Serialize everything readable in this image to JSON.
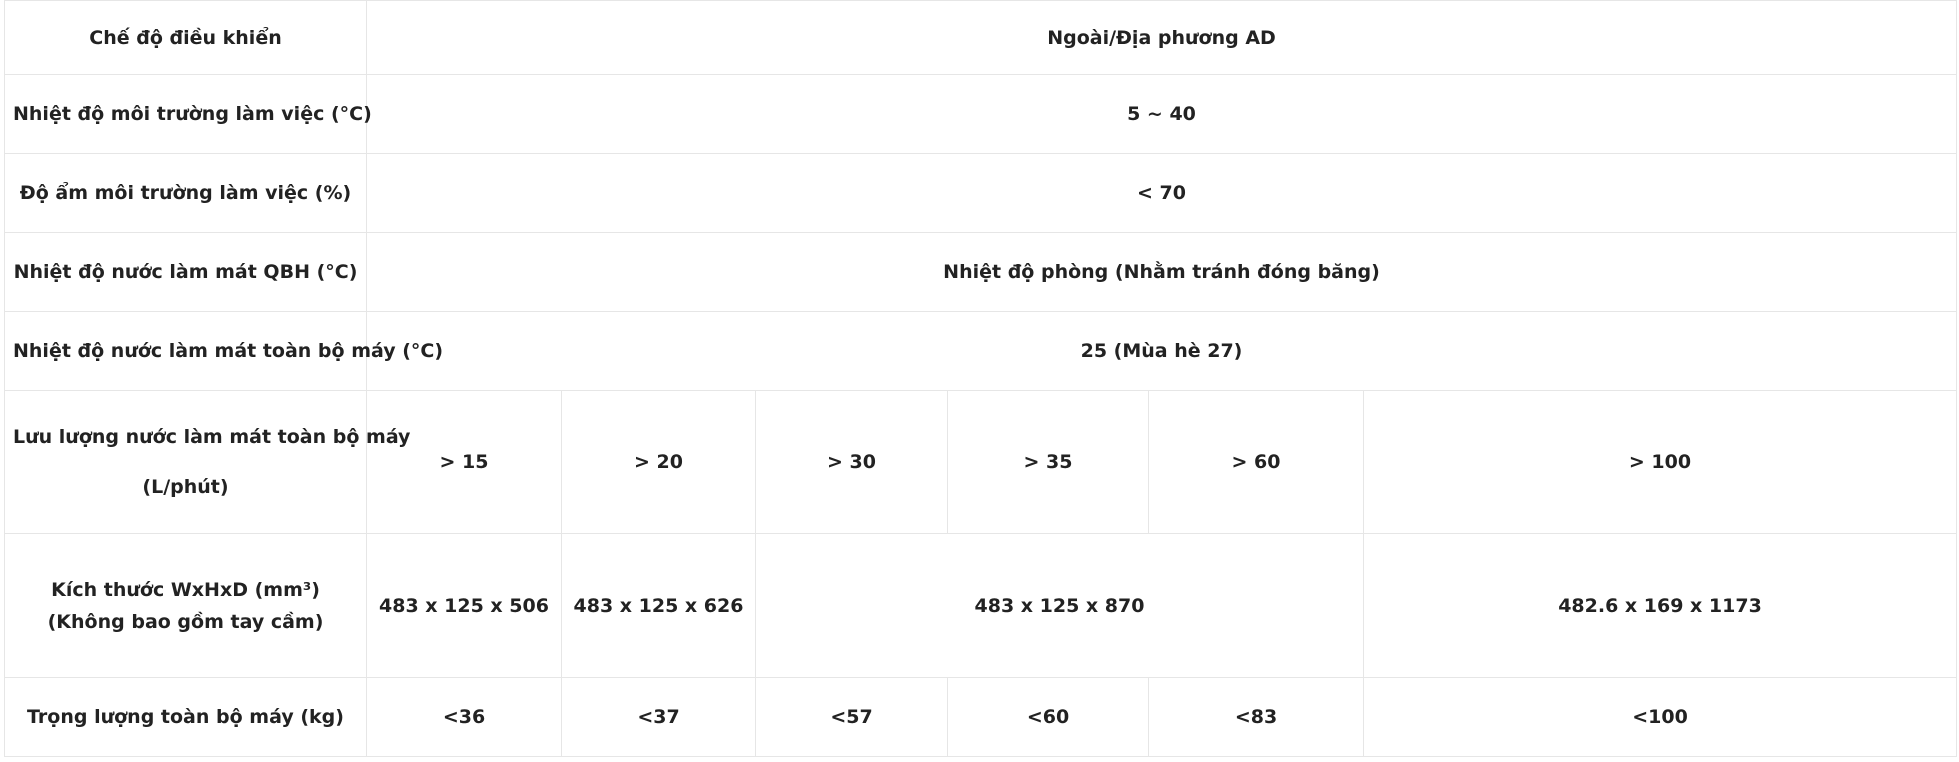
{
  "rows": {
    "control_mode": {
      "label": "Chế độ điều khiển",
      "value": "Ngoài/Địa phương AD"
    },
    "working_temp": {
      "label": "Nhiệt độ môi trường làm việc  (°C)",
      "value": "5 ~ 40"
    },
    "working_humidity": {
      "label": "Độ ẩm môi trường làm việc  (%)",
      "value": "< 70"
    },
    "qbh_coolant_temp": {
      "label": "Nhiệt độ nước làm mát QBH  (°C)",
      "value": "Nhiệt độ phòng (Nhằm tránh đóng băng)"
    },
    "machine_coolant_temp": {
      "label": "Nhiệt độ nước làm mát toàn bộ máy  (°C)",
      "value": "25  (Mùa hè 27)"
    },
    "coolant_flow": {
      "label_line1": "Lưu lượng nước làm mát toàn bộ máy",
      "label_line2": "(L/phút)",
      "values": [
        "> 15",
        "> 20",
        "> 30",
        "> 35",
        "> 60",
        "> 100"
      ]
    },
    "dimensions": {
      "label_line1": "Kích thước WxHxD (mm³)",
      "label_line2": "(Không bao gồm tay cầm)",
      "values": [
        "483 x 125 x 506",
        "483 x 125 x 626",
        "483 x 125 x 870",
        "482.6 x 169 x 1173"
      ]
    },
    "weight": {
      "label": "Trọng lượng toàn bộ máy  (kg)",
      "values": [
        "<36",
        "<37",
        "<57",
        "<60",
        "<83",
        "<100"
      ]
    }
  }
}
